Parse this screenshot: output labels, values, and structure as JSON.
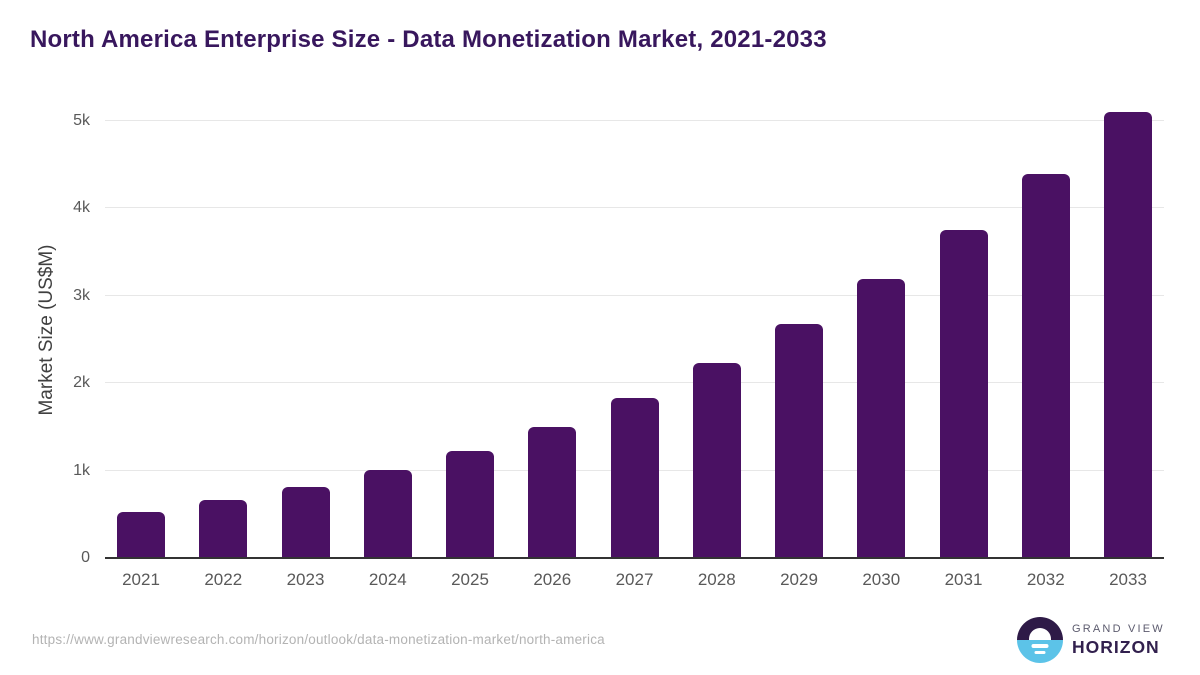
{
  "header": {
    "title": "North America Enterprise Size - Data Monetization Market, 2021-2033"
  },
  "chart_data": {
    "type": "bar",
    "title": "North America Enterprise Size - Data Monetization Market, 2021-2033",
    "categories": [
      "2021",
      "2022",
      "2023",
      "2024",
      "2025",
      "2026",
      "2027",
      "2028",
      "2029",
      "2030",
      "2031",
      "2032",
      "2033"
    ],
    "values": [
      520,
      660,
      810,
      1000,
      1225,
      1500,
      1830,
      2225,
      2675,
      3190,
      3750,
      4390,
      5100
    ],
    "unit": "US$M",
    "xlabel": "",
    "ylabel": "Market Size (US$M)",
    "ylim": [
      0,
      5120
    ],
    "yticks": [
      {
        "value": 0,
        "label": "0"
      },
      {
        "value": 1000,
        "label": "1k"
      },
      {
        "value": 2000,
        "label": "2k"
      },
      {
        "value": 3000,
        "label": "3k"
      },
      {
        "value": 4000,
        "label": "4k"
      },
      {
        "value": 5000,
        "label": "5k"
      }
    ],
    "grid": "horizontal-only",
    "legend": "none",
    "bar_color": "#4a1163"
  },
  "footer": {
    "source_url": "https://www.grandviewresearch.com/horizon/outlook/data-monetization-market/north-america",
    "logo": {
      "line1": "GRAND VIEW",
      "line2": "HORIZON"
    }
  },
  "colors": {
    "title": "#38175d",
    "bar": "#4a1163",
    "grid": "#e7e7e7",
    "axis": "#333333",
    "tick": "#595959",
    "axistitle": "#404040",
    "url": "#b3b3b3",
    "logodark": "#2e1a47",
    "logoblue": "#5cc3e8",
    "logotext": "#32204e",
    "logogray": "#5c5b6e"
  }
}
